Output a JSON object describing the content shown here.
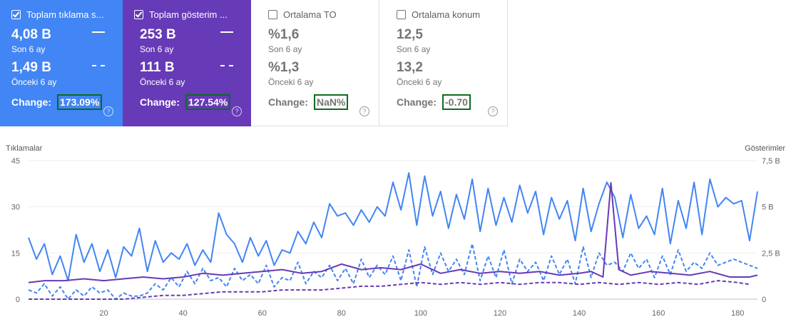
{
  "cards": [
    {
      "label": "Toplam tıklama s...",
      "checked": true,
      "current_value": "4,08 B",
      "current_period": "Son 6 ay",
      "previous_value": "1,49 B",
      "previous_period": "Önceki 6 ay",
      "change_label": "Change:",
      "change_value": "173.09%",
      "help": "?"
    },
    {
      "label": "Toplam gösterim ...",
      "checked": true,
      "current_value": "253 B",
      "current_period": "Son 6 ay",
      "previous_value": "111 B",
      "previous_period": "Önceki 6 ay",
      "change_label": "Change:",
      "change_value": "127.54%",
      "help": "?"
    },
    {
      "label": "Ortalama TO",
      "checked": false,
      "current_value": "%1,6",
      "current_period": "Son 6 ay",
      "previous_value": "%1,3",
      "previous_period": "Önceki 6 ay",
      "change_label": "Change:",
      "change_value": "NaN%",
      "help": "?"
    },
    {
      "label": "Ortalama konum",
      "checked": false,
      "current_value": "12,5",
      "current_period": "Son 6 ay",
      "previous_value": "13,2",
      "previous_period": "Önceki 6 ay",
      "change_label": "Change:",
      "change_value": "-0.70",
      "help": "?"
    }
  ],
  "colors": {
    "clicks": "#4285f4",
    "impressions": "#673ab7",
    "change_border": "#0d6b1f"
  },
  "chart_data": {
    "type": "line",
    "left_axis_title": "Tıklamalar",
    "right_axis_title": "Gösterimler",
    "left_ticks": [
      "0",
      "15",
      "30",
      "45"
    ],
    "right_ticks": [
      "0",
      "2,5 B",
      "5 B",
      "7,5 B"
    ],
    "x_ticks": [
      "20",
      "40",
      "60",
      "80",
      "100",
      "120",
      "140",
      "160",
      "180"
    ],
    "xlim": [
      1,
      185
    ],
    "left_ylim": [
      0,
      45
    ],
    "right_ylim": [
      0,
      7.5
    ],
    "series": [
      {
        "key": "clicks_current",
        "style": "solid",
        "axis": "left",
        "color": "#4285f4",
        "x": [
          1,
          3,
          5,
          7,
          9,
          11,
          13,
          15,
          17,
          19,
          21,
          23,
          25,
          27,
          29,
          31,
          33,
          35,
          37,
          39,
          41,
          43,
          45,
          47,
          49,
          51,
          53,
          55,
          57,
          59,
          61,
          63,
          65,
          67,
          69,
          71,
          73,
          75,
          77,
          79,
          81,
          83,
          85,
          87,
          89,
          91,
          93,
          95,
          97,
          99,
          101,
          103,
          105,
          107,
          109,
          111,
          113,
          115,
          117,
          119,
          121,
          123,
          125,
          127,
          129,
          131,
          133,
          135,
          137,
          139,
          141,
          143,
          145,
          147,
          149,
          151,
          153,
          155,
          157,
          159,
          161,
          163,
          165,
          167,
          169,
          171,
          173,
          175,
          177,
          179,
          181,
          183,
          185
        ],
        "y": [
          20,
          13,
          18,
          8,
          14,
          6,
          21,
          12,
          18,
          9,
          16,
          7,
          17,
          14,
          23,
          9,
          19,
          12,
          15,
          13,
          18,
          11,
          16,
          12,
          28,
          21,
          18,
          12,
          20,
          14,
          19,
          11,
          16,
          15,
          22,
          18,
          25,
          20,
          31,
          27,
          28,
          24,
          29,
          25,
          30,
          27,
          38,
          29,
          41,
          24,
          40,
          27,
          35,
          23,
          34,
          26,
          39,
          22,
          36,
          24,
          33,
          25,
          37,
          28,
          35,
          21,
          33,
          26,
          32,
          19,
          36,
          22,
          31,
          38,
          33,
          20,
          34,
          23,
          27,
          21,
          36,
          18,
          32,
          23,
          38,
          21,
          39,
          30,
          33,
          31,
          32,
          19,
          35
        ]
      },
      {
        "key": "clicks_previous",
        "style": "dashed",
        "axis": "left",
        "color": "#4285f4",
        "x": [
          1,
          3,
          5,
          7,
          9,
          11,
          13,
          15,
          17,
          19,
          21,
          23,
          25,
          27,
          29,
          31,
          33,
          35,
          37,
          39,
          41,
          43,
          45,
          47,
          49,
          51,
          53,
          55,
          57,
          59,
          61,
          63,
          65,
          67,
          69,
          71,
          73,
          75,
          77,
          79,
          81,
          83,
          85,
          87,
          89,
          91,
          93,
          95,
          97,
          99,
          101,
          103,
          105,
          107,
          109,
          111,
          113,
          115,
          117,
          119,
          121,
          123,
          125,
          127,
          129,
          131,
          133,
          135,
          137,
          139,
          141,
          143,
          145,
          147,
          149,
          151,
          153,
          155,
          157,
          159,
          161,
          163,
          165,
          167,
          169,
          171,
          173,
          175,
          177,
          179,
          181,
          183,
          185
        ],
        "y": [
          3,
          2,
          5,
          1,
          4,
          0,
          3,
          1,
          4,
          2,
          3,
          0,
          2,
          1,
          1,
          2,
          5,
          3,
          7,
          4,
          9,
          5,
          10,
          6,
          7,
          4,
          10,
          6,
          8,
          5,
          11,
          4,
          7,
          6,
          12,
          5,
          9,
          7,
          11,
          6,
          10,
          5,
          13,
          7,
          11,
          8,
          14,
          6,
          16,
          4,
          17,
          8,
          15,
          9,
          13,
          8,
          18,
          6,
          14,
          7,
          16,
          5,
          13,
          9,
          12,
          6,
          14,
          8,
          13,
          5,
          17,
          7,
          15,
          11,
          12,
          9,
          15,
          10,
          13,
          7,
          14,
          8,
          16,
          9,
          12,
          10,
          15,
          11,
          12,
          13,
          12,
          11,
          10
        ]
      },
      {
        "key": "impressions_current",
        "style": "solid",
        "axis": "right",
        "color": "#673ab7",
        "x": [
          1,
          5,
          10,
          15,
          20,
          25,
          30,
          35,
          40,
          45,
          50,
          55,
          60,
          65,
          70,
          75,
          80,
          85,
          90,
          95,
          100,
          105,
          110,
          115,
          120,
          125,
          130,
          135,
          140,
          143,
          146,
          148,
          150,
          153,
          158,
          163,
          168,
          173,
          178,
          183,
          185
        ],
        "y": [
          0.9,
          1.0,
          1.0,
          1.1,
          1.0,
          1.1,
          1.2,
          1.1,
          1.2,
          1.4,
          1.3,
          1.4,
          1.5,
          1.6,
          1.4,
          1.5,
          1.9,
          1.6,
          1.7,
          1.6,
          1.9,
          1.4,
          1.6,
          1.4,
          1.5,
          1.4,
          1.5,
          1.3,
          1.4,
          1.5,
          1.2,
          6.3,
          1.6,
          1.3,
          1.5,
          1.4,
          1.3,
          1.5,
          1.2,
          1.2,
          1.3
        ]
      },
      {
        "key": "impressions_previous",
        "style": "dashed",
        "axis": "right",
        "color": "#673ab7",
        "x": [
          1,
          5,
          10,
          15,
          20,
          25,
          30,
          35,
          40,
          45,
          50,
          55,
          60,
          65,
          70,
          75,
          80,
          85,
          90,
          95,
          100,
          105,
          110,
          115,
          120,
          125,
          130,
          135,
          140,
          145,
          150,
          155,
          160,
          165,
          170,
          175,
          180,
          183
        ],
        "y": [
          0,
          0,
          0,
          0,
          0,
          0,
          0.1,
          0.2,
          0.2,
          0.3,
          0.4,
          0.4,
          0.4,
          0.5,
          0.5,
          0.5,
          0.6,
          0.7,
          0.7,
          0.8,
          0.9,
          0.8,
          0.9,
          0.8,
          0.9,
          0.8,
          0.9,
          0.9,
          0.8,
          0.9,
          0.8,
          0.9,
          0.8,
          0.9,
          0.8,
          1.0,
          0.9,
          0.8
        ]
      }
    ]
  }
}
